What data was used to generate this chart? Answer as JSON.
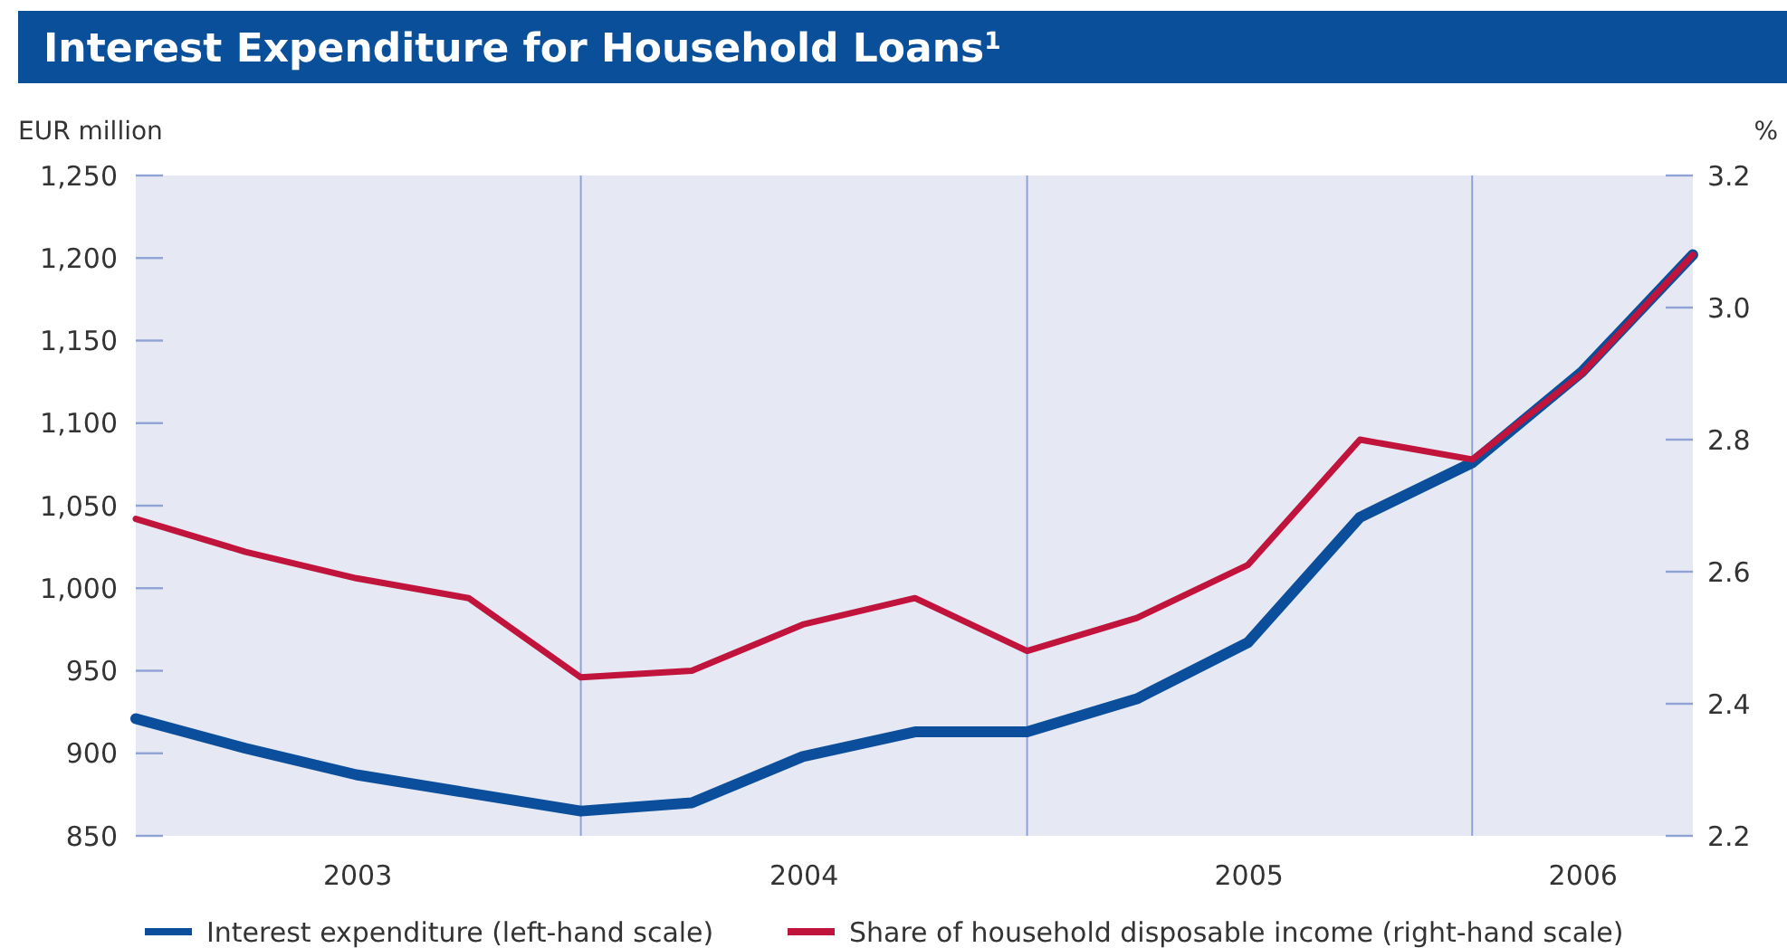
{
  "chart_data": {
    "type": "line",
    "title": "Interest Expenditure for Household Loans$^{1}$",
    "ylabel": "EUR million",
    "y2label": "%",
    "x": [
      "2002-12-31",
      "2003-03-31",
      "2003-06-30",
      "2003-09-30",
      "2003-12-31",
      "2004-03-31",
      "2004-06-30",
      "2004-09-30",
      "2004-12-31",
      "2005-03-31",
      "2005-06-30",
      "2005-09-30",
      "2005-12-31",
      "2006-03-31",
      "2006-06-30"
    ],
    "xlim": [
      "2002-12-31",
      "2006-06-30"
    ],
    "xticks": [
      {
        "value": "2003-07-01",
        "label": "2003"
      },
      {
        "value": "2004-07-01",
        "label": "2004"
      },
      {
        "value": "2005-07-01",
        "label": "2005"
      },
      {
        "value": "2006-04-01",
        "label": "2006"
      }
    ],
    "ylim": [
      850,
      1250
    ],
    "yticks": [
      {
        "value": 850,
        "label": "850"
      },
      {
        "value": 900,
        "label": "900"
      },
      {
        "value": 950,
        "label": "950"
      },
      {
        "value": 1000,
        "label": "1,000"
      },
      {
        "value": 1050,
        "label": "1,050"
      },
      {
        "value": 1100,
        "label": "1,100"
      },
      {
        "value": 1150,
        "label": "1,150"
      },
      {
        "value": 1200,
        "label": "1,200"
      },
      {
        "value": 1250,
        "label": "1,250"
      }
    ],
    "y2lim": [
      2.2,
      3.2
    ],
    "y2ticks": [
      {
        "value": 2.2,
        "label": "2.2"
      },
      {
        "value": 2.4,
        "label": "2.4"
      },
      {
        "value": 2.6,
        "label": "2.6"
      },
      {
        "value": 2.8,
        "label": "2.8"
      },
      {
        "value": 3.0,
        "label": "3.0"
      },
      {
        "value": 3.2,
        "label": "3.2"
      }
    ],
    "series": [
      {
        "name": "Interest expenditure (left-hand scale)",
        "color": "#0b4f9c",
        "values": [
          921,
          903,
          887,
          876,
          865,
          870,
          898,
          913,
          913,
          933,
          967,
          1043,
          1076,
          1131,
          1202
        ]
      },
      {
        "name": "Share of household disposable income (right-hand scale)",
        "color": "#c0143c",
        "axis": "y2",
        "values": [
          2.68,
          2.63,
          2.59,
          2.56,
          2.44,
          2.45,
          2.52,
          2.56,
          2.48,
          2.53,
          2.61,
          2.8,
          2.77,
          2.9,
          3.08
        ]
      }
    ],
    "ref_lines": [
      {
        "axis": "x",
        "value": "2003-12-31",
        "color": "#8fa3d6"
      },
      {
        "axis": "x",
        "value": "2004-12-31",
        "color": "#8fa3d6"
      },
      {
        "axis": "x",
        "value": "2005-12-31",
        "color": "#8fa3d6"
      }
    ],
    "legend": "bottom",
    "line_style": "solid"
  }
}
